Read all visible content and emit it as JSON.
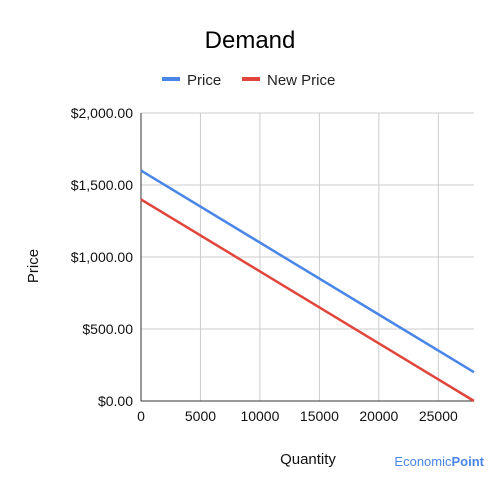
{
  "chart_data": {
    "type": "line",
    "title": "Demand",
    "xlabel": "Quantity",
    "ylabel": "Price",
    "xlim": [
      0,
      28000
    ],
    "ylim": [
      0,
      2000
    ],
    "x_ticks": [
      "0",
      "5000",
      "10000",
      "15000",
      "20000",
      "25000"
    ],
    "x_tick_values": [
      0,
      5000,
      10000,
      15000,
      20000,
      25000
    ],
    "y_ticks": [
      "$0.00",
      "$500.00",
      "$1,000.00",
      "$1,500.00",
      "$2,000.00"
    ],
    "y_tick_values": [
      0,
      500,
      1000,
      1500,
      2000
    ],
    "grid": true,
    "legend_position": "top",
    "series": [
      {
        "name": "Price",
        "color": "#4a86e8",
        "x": [
          0,
          28000
        ],
        "y": [
          1600,
          200
        ]
      },
      {
        "name": "New Price",
        "color": "#e0443a",
        "x": [
          0,
          28000
        ],
        "y": [
          1400,
          0
        ]
      }
    ]
  },
  "watermark": {
    "part1": "Economic",
    "part2": "Point"
  }
}
